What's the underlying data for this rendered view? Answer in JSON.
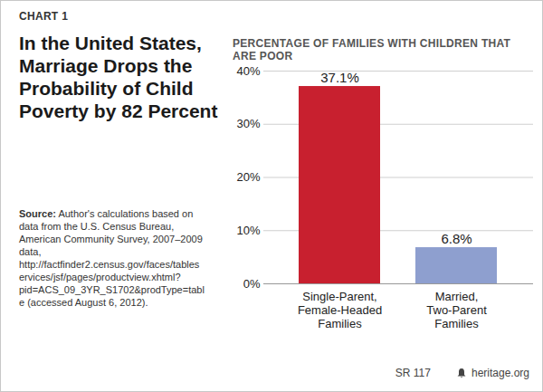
{
  "chart_data": {
    "type": "bar",
    "chart_label": "CHART 1",
    "title": "In the United States, Marriage Drops the Probability of Child Poverty by 82 Percent",
    "source_label": "Source:",
    "source": "Author's calculations based on data from the U.S. Census Bureau, American Community Survey, 2007–2009 data, http://factfinder2.census.gov/faces/tableservices/jsf/pages/productview.xhtml?pid=ACS_09_3YR_S1702&prodType=table (accessed August 6, 2012).",
    "y_label": "PERCENTAGE OF FAMILIES WITH CHILDREN THAT ARE POOR",
    "categories": [
      "Single-Parent,\nFemale-Headed\nFamilies",
      "Married,\nTwo-Parent\nFamilies"
    ],
    "values": [
      37.1,
      6.8
    ],
    "value_labels": [
      "37.1%",
      "6.8%"
    ],
    "colors": [
      "#c8202f",
      "#8e9fcf"
    ],
    "ylim": [
      0,
      40
    ],
    "yticks": [
      {
        "value": 0,
        "label": "0%"
      },
      {
        "value": 10,
        "label": "10%"
      },
      {
        "value": 20,
        "label": "20%"
      },
      {
        "value": 30,
        "label": "30%"
      },
      {
        "value": 40,
        "label": "40%"
      }
    ],
    "grid": true,
    "data_labels": true,
    "footer": [
      "SR 117",
      "heritage.org"
    ]
  }
}
